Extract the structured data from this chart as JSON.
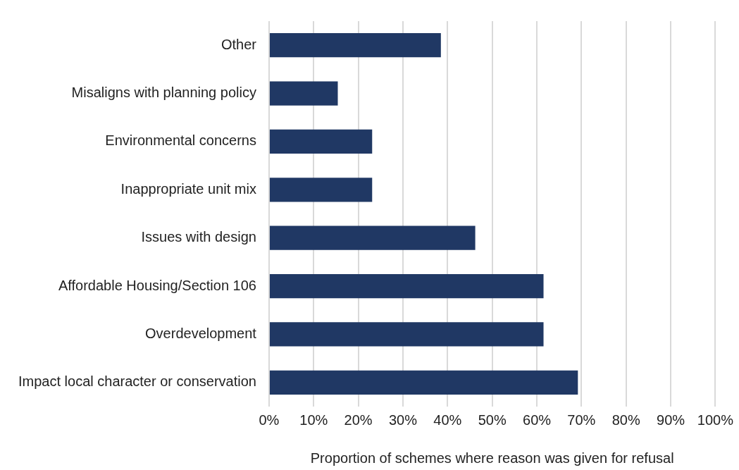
{
  "chart_data": {
    "type": "bar",
    "orientation": "horizontal",
    "xlabel": "Proportion of schemes where reason was given for refusal",
    "categories": [
      "Other",
      "Misaligns with planning policy",
      "Environmental concerns",
      "Inappropriate unit mix",
      "Issues with design",
      "Affordable Housing/Section 106",
      "Overdevelopment",
      "Impact local character or conservation"
    ],
    "values": [
      38.5,
      15.4,
      23.1,
      23.1,
      46.2,
      61.5,
      61.5,
      69.2
    ],
    "color": "#203864",
    "xlim": [
      0,
      100
    ],
    "xticks": [
      {
        "value": 0,
        "label": "0%"
      },
      {
        "value": 10,
        "label": "10%"
      },
      {
        "value": 20,
        "label": "20%"
      },
      {
        "value": 30,
        "label": "30%"
      },
      {
        "value": 40,
        "label": "40%"
      },
      {
        "value": 50,
        "label": "50%"
      },
      {
        "value": 60,
        "label": "60%"
      },
      {
        "value": 70,
        "label": "70%"
      },
      {
        "value": 80,
        "label": "80%"
      },
      {
        "value": 90,
        "label": "90%"
      },
      {
        "value": 100,
        "label": "100%"
      }
    ],
    "grid": "x",
    "legend": false
  }
}
